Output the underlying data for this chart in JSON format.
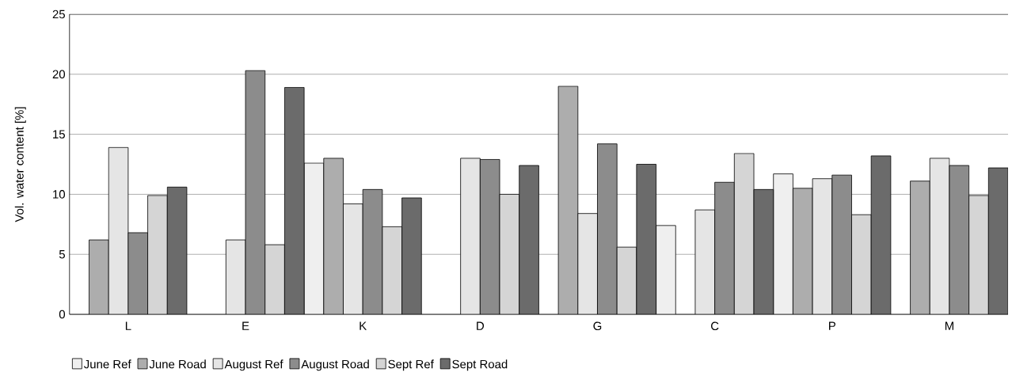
{
  "chart_data": {
    "type": "bar",
    "ylabel": "Vol. water content [%]",
    "categories": [
      "L",
      "E",
      "K",
      "D",
      "G",
      "C",
      "P",
      "M"
    ],
    "series": [
      {
        "name": "June Ref",
        "color": "#efefef",
        "values": [
          null,
          null,
          12.6,
          null,
          null,
          7.4,
          11.7,
          null
        ]
      },
      {
        "name": "June Road",
        "color": "#adadad",
        "values": [
          6.2,
          null,
          13.0,
          null,
          19.0,
          null,
          10.5,
          11.1
        ]
      },
      {
        "name": "August Ref",
        "color": "#e5e5e5",
        "values": [
          13.9,
          6.2,
          9.2,
          13.0,
          8.4,
          8.7,
          11.3,
          13.0
        ]
      },
      {
        "name": "August Road",
        "color": "#8c8c8c",
        "values": [
          6.8,
          20.3,
          10.4,
          12.9,
          14.2,
          11.0,
          11.6,
          12.4
        ]
      },
      {
        "name": "Sept Ref",
        "color": "#d5d5d5",
        "values": [
          9.9,
          5.8,
          7.3,
          10.0,
          5.6,
          13.4,
          8.3,
          9.9
        ]
      },
      {
        "name": "Sept Road",
        "color": "#6b6b6b",
        "values": [
          10.6,
          18.9,
          9.7,
          12.4,
          12.5,
          10.4,
          13.2,
          12.2
        ]
      }
    ],
    "ylim": [
      0,
      25
    ],
    "yticks": [
      0,
      5,
      10,
      15,
      20,
      25
    ],
    "grid": "y",
    "legend": "bottom left"
  }
}
